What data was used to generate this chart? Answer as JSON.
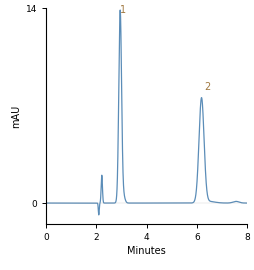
{
  "title": "",
  "xlabel": "Minutes",
  "ylabel": "mAU",
  "xlim": [
    0,
    8
  ],
  "ylim": [
    -1.5,
    14
  ],
  "yticks": [
    0,
    14
  ],
  "xticks": [
    0,
    2,
    4,
    6,
    8
  ],
  "line_color": "#5b8db8",
  "line_width": 0.9,
  "peak1_x": 2.95,
  "peak1_y": 13.8,
  "peak1_label": "1",
  "peak2_x": 6.18,
  "peak2_y": 7.5,
  "peak2_label": "2",
  "label_color": "#a07840",
  "background_color": "#ffffff",
  "tick_fontsize": 6.5,
  "label_fontsize": 7.0
}
